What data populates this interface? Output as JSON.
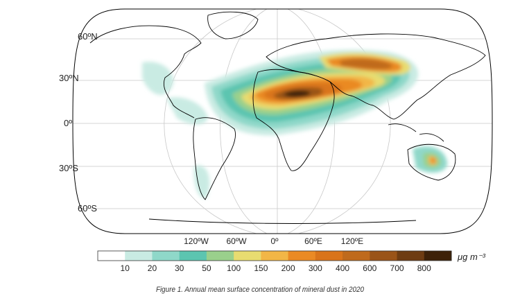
{
  "caption": "Figure 1. Annual mean surface concentration of mineral dust in 2020",
  "map": {
    "projection": "robinson",
    "latitude_labels": [
      "60ºN",
      "30ºN",
      "0º",
      "30ºS",
      "60ºS"
    ],
    "longitude_labels": [
      "120ºW",
      "60ºW",
      "0º",
      "60ºE",
      "120ºE"
    ],
    "ocean_color": "#ffffff",
    "coastline_color": "#000000",
    "gridline_color": "#c8c8c8"
  },
  "colorbar": {
    "unit": "μg m⁻³",
    "ticks": [
      "10",
      "20",
      "30",
      "50",
      "100",
      "150",
      "200",
      "300",
      "400",
      "600",
      "700",
      "800"
    ],
    "colors": [
      "#ffffff",
      "#c9ebe3",
      "#8fd8c9",
      "#5cc5b0",
      "#9ad08c",
      "#e8dc70",
      "#f2b646",
      "#ea8a24",
      "#d9741a",
      "#bf6a1c",
      "#9a5418",
      "#6e3c12",
      "#3d2108"
    ]
  }
}
